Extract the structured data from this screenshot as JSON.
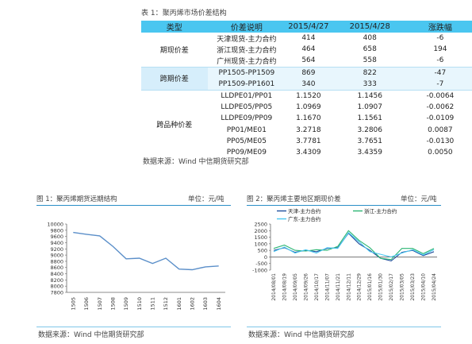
{
  "table": {
    "caption": "表 1：聚丙烯市场价差结构",
    "headers": [
      "类型",
      "价差说明",
      "2015/4/27",
      "2015/4/28",
      "涨跌幅"
    ],
    "groups": [
      {
        "category": "期现价差",
        "highlight": false,
        "rows": [
          [
            "天津现货-主力合约",
            "414",
            "408",
            "-6"
          ],
          [
            "浙江现货-主力合约",
            "464",
            "658",
            "194"
          ],
          [
            "广州现货-主力合约",
            "564",
            "558",
            "-6"
          ]
        ]
      },
      {
        "category": "跨期价差",
        "highlight": true,
        "rows": [
          [
            "PP1505-PP1509",
            "869",
            "822",
            "-47"
          ],
          [
            "PP1509-PP1601",
            "340",
            "333",
            "-7"
          ]
        ]
      },
      {
        "category": "跨品种价差",
        "highlight": false,
        "rows": [
          [
            "LLDPE01/PP01",
            "1.1520",
            "1.1456",
            "-0.0064"
          ],
          [
            "LLDPE05/PP05",
            "1.0969",
            "1.0907",
            "-0.0062"
          ],
          [
            "LLDPE09/PP09",
            "1.1670",
            "1.1561",
            "-0.0109"
          ],
          [
            "PP01/ME01",
            "3.2718",
            "3.2806",
            "0.0087"
          ],
          [
            "PP05/ME05",
            "3.7781",
            "3.7651",
            "-0.0130"
          ],
          [
            "PP09/ME09",
            "3.4309",
            "3.4359",
            "0.0050"
          ]
        ]
      }
    ],
    "source": "数据来源：Wind  中信期货研究部"
  },
  "figure1": {
    "caption": "图 1：聚丙烯期货远期结构",
    "unit": "单位：元/吨",
    "source": "数据来源：Wind  中信期货研究部"
  },
  "figure2": {
    "caption": "图 2：聚丙烯主要地区期现价差",
    "unit": "单位：元/吨",
    "source": "数据来源：Wind  中信期货研究部"
  },
  "colors": {
    "header_bg": "#4ac6f0",
    "rule": "#2a8fc7",
    "line_fig1": "#5b8fc9",
    "tianjin": "#1f4e9c",
    "zhejiang": "#2bb673",
    "guangzhou": "#4ac6f0"
  },
  "chart_data": [
    {
      "type": "line",
      "title": "",
      "categories": [
        "1505",
        "1506",
        "1507",
        "1508",
        "1509",
        "1510",
        "1511",
        "1512",
        "1601",
        "1602",
        "1603",
        "1604"
      ],
      "values": [
        9730,
        9670,
        9620,
        9280,
        8880,
        8900,
        8730,
        8900,
        8550,
        8530,
        8620,
        8650
      ],
      "ylim": [
        7800,
        10000
      ],
      "yticks": [
        "10000",
        "9800",
        "9600",
        "9400",
        "9200",
        "9000",
        "8800",
        "8600",
        "8400",
        "8200",
        "8000",
        "7800"
      ],
      "grid": false
    },
    {
      "type": "line",
      "title": "",
      "x": [
        "2014/08/01",
        "2014/08/19",
        "2014/09/05",
        "2014/09/26",
        "2014/10/17",
        "2014/11/07",
        "2014/11/21",
        "2014/12/11",
        "2014/12/29",
        "2015/01/16",
        "2015/01/30",
        "2015/02/17",
        "2015/03/05",
        "2015/03/23",
        "2015/04/10",
        "2015/04/24"
      ],
      "ylim": [
        -1000,
        2500
      ],
      "yticks": [
        "2500",
        "2000",
        "1500",
        "1000",
        "500",
        "0",
        "-500",
        "-1000"
      ],
      "legend": "top",
      "series": [
        {
          "name": "天津-主力合约",
          "values": [
            500,
            700,
            350,
            500,
            400,
            650,
            700,
            1800,
            1000,
            500,
            -100,
            -300,
            350,
            500,
            100,
            400
          ]
        },
        {
          "name": "浙江-主力合约",
          "values": [
            650,
            900,
            500,
            450,
            550,
            500,
            800,
            2000,
            1250,
            700,
            -100,
            -200,
            650,
            650,
            250,
            650
          ]
        },
        {
          "name": "广东-主力合约",
          "values": [
            400,
            750,
            300,
            550,
            300,
            700,
            650,
            1850,
            1150,
            400,
            200,
            0,
            300,
            550,
            150,
            550
          ]
        }
      ]
    }
  ]
}
